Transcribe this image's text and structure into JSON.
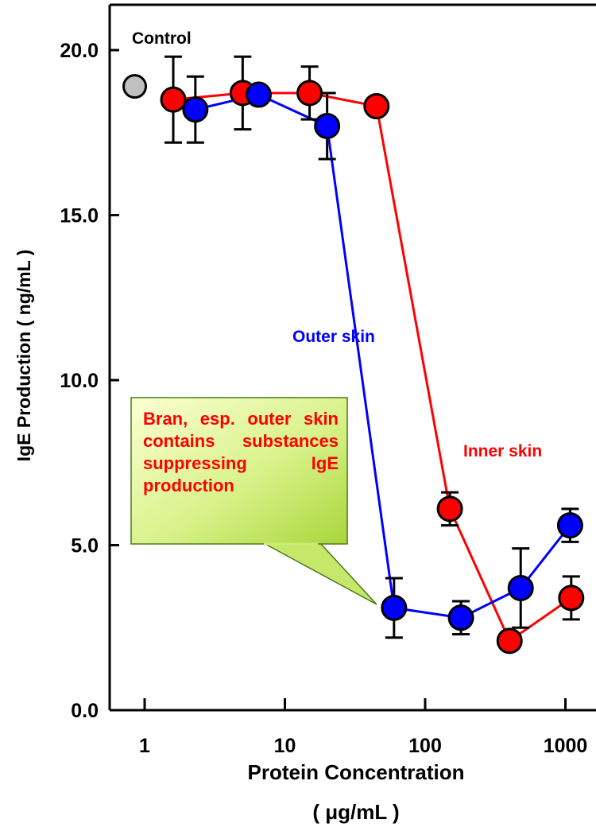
{
  "chart_data": {
    "type": "scatter",
    "title": "",
    "xlabel": "Protein Concentration",
    "xlabel_unit": "( μg/mL )",
    "ylabel": "IgE Production ( ng/mL )",
    "x_scale": "log",
    "xlim": [
      0.6,
      1500
    ],
    "ylim": [
      0,
      21
    ],
    "x_ticks": [
      1,
      10,
      100,
      1000
    ],
    "x_tick_labels": [
      "1",
      "10",
      "100",
      "1000"
    ],
    "y_ticks": [
      0,
      5,
      10,
      15,
      20
    ],
    "y_tick_labels": [
      "0.0",
      "5.0",
      "10.0",
      "15.0",
      "20.0"
    ],
    "grid": false,
    "legend": "none",
    "control": {
      "label": "Control",
      "x": 0.85,
      "y": 18.9,
      "color": "#c0c0c0"
    },
    "series": [
      {
        "name": "Inner skin",
        "color": "#ff0000",
        "x": [
          1.6,
          5,
          15,
          45,
          150,
          400,
          1100
        ],
        "y": [
          18.5,
          18.7,
          18.7,
          18.3,
          6.1,
          2.1,
          3.4
        ],
        "err": [
          1.3,
          1.1,
          0.8,
          0,
          0.5,
          0,
          0.65
        ]
      },
      {
        "name": "Outer skin",
        "color": "#0000ff",
        "x": [
          2.3,
          6.5,
          20,
          60,
          180,
          480,
          1080
        ],
        "y": [
          18.2,
          18.65,
          17.7,
          3.1,
          2.8,
          3.7,
          5.6
        ],
        "err": [
          1.0,
          0,
          1.0,
          0.9,
          0.5,
          1.2,
          0.5
        ]
      }
    ],
    "annotations": {
      "inner_label": "Inner skin",
      "outer_label": "Outer skin",
      "callout": "Bran, esp. outer skin contains substances suppressing IgE production"
    }
  }
}
